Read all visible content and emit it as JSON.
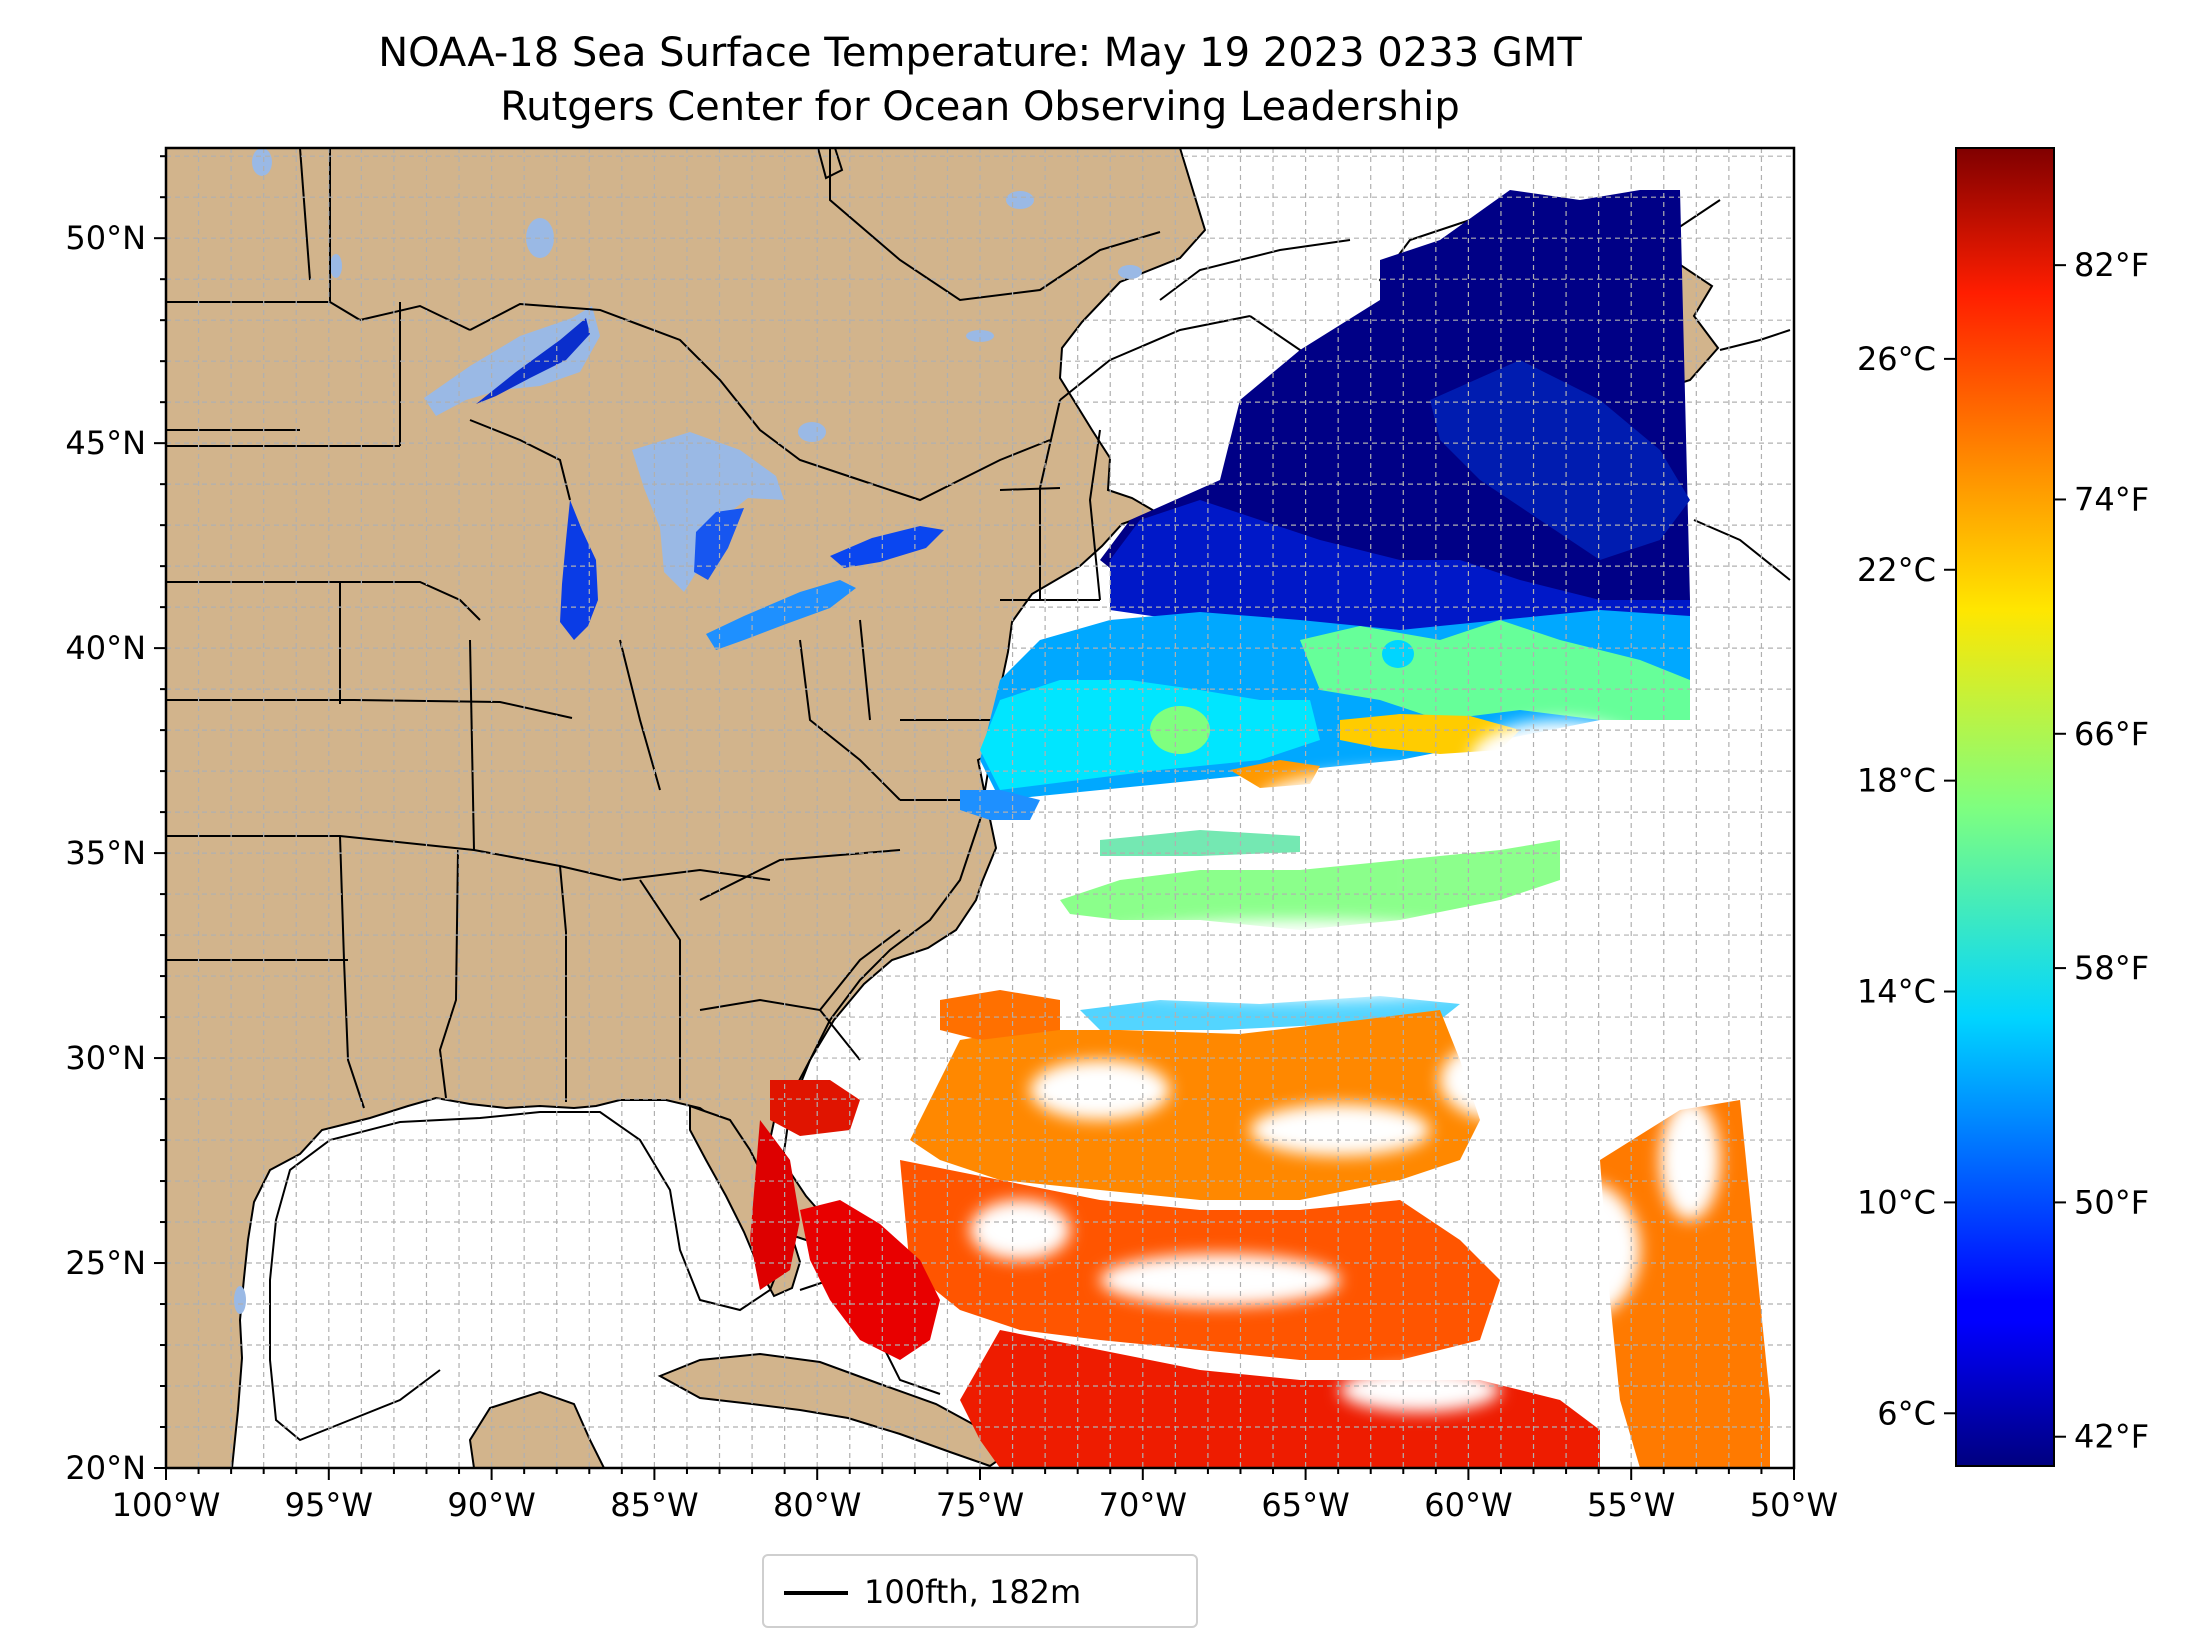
{
  "title": {
    "line1": "NOAA-18 Sea Surface Temperature: May 19 2023 0233 GMT",
    "line2": "Rutgers Center for Ocean Observing Leadership"
  },
  "map": {
    "lon_range": [
      -100,
      -50
    ],
    "lat_range": [
      20,
      52.2
    ],
    "lon_ticks": [
      "100°W",
      "95°W",
      "90°W",
      "85°W",
      "80°W",
      "75°W",
      "70°W",
      "65°W",
      "60°W",
      "55°W",
      "50°W"
    ],
    "lat_ticks": [
      "20°N",
      "25°N",
      "30°N",
      "35°N",
      "40°N",
      "45°N",
      "50°N"
    ],
    "gridlines": true,
    "land_color": "#d2b48c",
    "lake_color": "#9ab9e5"
  },
  "colorbar": {
    "colormap": "jet",
    "range_c": [
      5,
      30
    ],
    "celsius_ticks": [
      "6°C",
      "10°C",
      "14°C",
      "18°C",
      "22°C",
      "26°C"
    ],
    "fahrenheit_ticks": [
      "42°F",
      "50°F",
      "58°F",
      "66°F",
      "74°F",
      "82°F"
    ]
  },
  "legend": {
    "entries": [
      {
        "label": "100fth, 182m",
        "color": "#000000"
      }
    ]
  }
}
